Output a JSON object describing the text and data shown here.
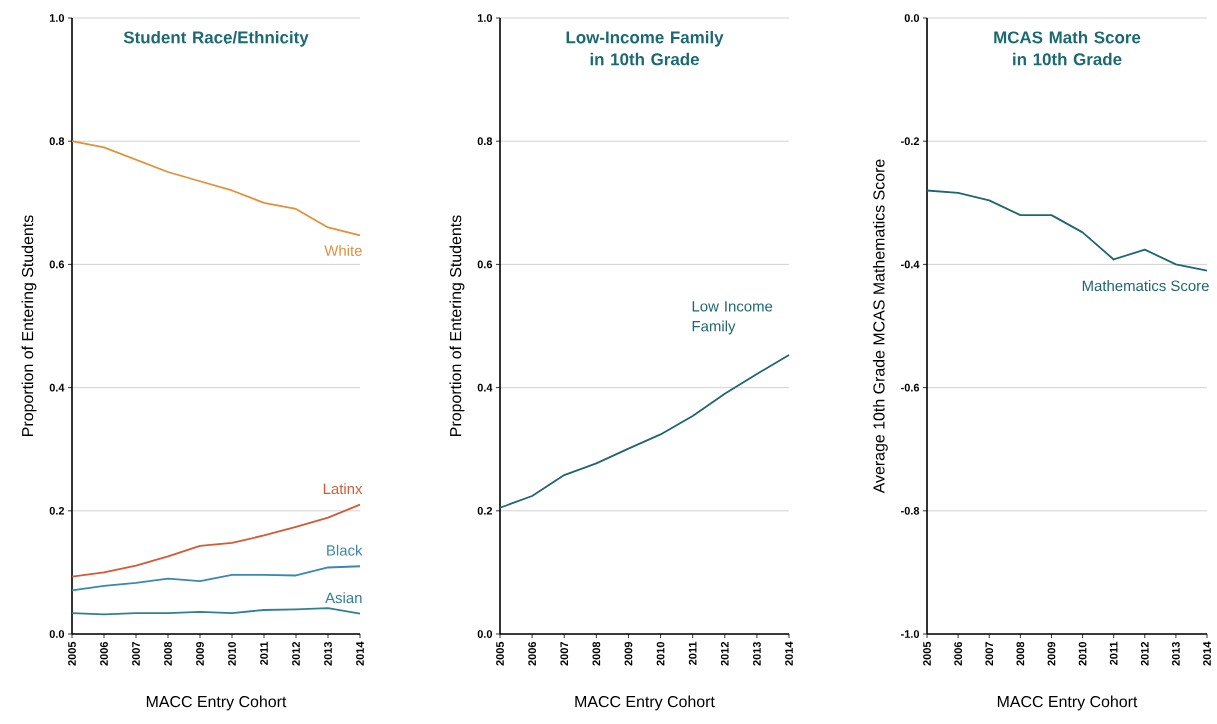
{
  "chart_data": [
    {
      "type": "line",
      "title": "Student Race/Ethnicity",
      "xlabel": "MACC Entry Cohort",
      "ylabel": "Proportion of Entering Students",
      "x": [
        2005,
        2006,
        2007,
        2008,
        2009,
        2010,
        2011,
        2012,
        2013,
        2014
      ],
      "series": [
        {
          "name": "White",
          "color": "#e0913a",
          "values": [
            0.8,
            0.79,
            0.77,
            0.75,
            0.735,
            0.72,
            0.7,
            0.69,
            0.66,
            0.647
          ]
        },
        {
          "name": "Latinx",
          "color": "#d35a35",
          "values": [
            0.093,
            0.1,
            0.111,
            0.126,
            0.143,
            0.148,
            0.16,
            0.174,
            0.189,
            0.21
          ]
        },
        {
          "name": "Black",
          "color": "#3a88b0",
          "values": [
            0.071,
            0.078,
            0.083,
            0.09,
            0.086,
            0.096,
            0.096,
            0.095,
            0.108,
            0.11
          ]
        },
        {
          "name": "Asian",
          "color": "#2f7f95",
          "values": [
            0.034,
            0.032,
            0.034,
            0.034,
            0.036,
            0.034,
            0.039,
            0.04,
            0.042,
            0.033
          ]
        }
      ],
      "xlim": [
        2005,
        2014
      ],
      "xticks": [
        2005,
        2006,
        2007,
        2008,
        2009,
        2010,
        2011,
        2012,
        2013,
        2014
      ],
      "ylim": [
        0,
        1
      ],
      "yticks": [
        {
          "value": 0,
          "label": "0.0"
        },
        0.2,
        0.4,
        0.6,
        0.8,
        {
          "value": 1,
          "label": "1.0"
        }
      ],
      "grid": "y",
      "legend": false
    },
    {
      "type": "line",
      "title": "Low-Income Family in 10th Grade",
      "xlabel": "MACC Entry Cohort",
      "ylabel": "Proportion of Entering Students",
      "x": [
        2005,
        2006,
        2007,
        2008,
        2009,
        2010,
        2011,
        2012,
        2013,
        2014
      ],
      "series": [
        {
          "name": "Low Income Family",
          "color": "#1f6670",
          "values": [
            0.205,
            0.224,
            0.258,
            0.277,
            0.301,
            0.324,
            0.354,
            0.39,
            0.422,
            0.453
          ]
        }
      ],
      "xlim": [
        2005,
        2014
      ],
      "xticks": [
        2005,
        2006,
        2007,
        2008,
        2009,
        2010,
        2011,
        2012,
        2013,
        2014
      ],
      "ylim": [
        0,
        1
      ],
      "yticks": [
        {
          "value": 0,
          "label": "0.0"
        },
        0.2,
        0.4,
        0.6,
        0.8,
        {
          "value": 1,
          "label": "1.0"
        }
      ],
      "grid": "y",
      "legend": false
    },
    {
      "type": "line",
      "title": "MCAS Math Score in 10th Grade",
      "xlabel": "MACC Entry Cohort",
      "ylabel": "Average 10th Grade MCAS Mathematics Score",
      "x": [
        2005,
        2006,
        2007,
        2008,
        2009,
        2010,
        2011,
        2012,
        2013,
        2014
      ],
      "series": [
        {
          "name": "Mathematics Score",
          "color": "#1f6670",
          "values": [
            -0.28,
            -0.284,
            -0.296,
            -0.32,
            -0.32,
            -0.348,
            -0.392,
            -0.376,
            -0.4,
            -0.41
          ]
        }
      ],
      "xlim": [
        2005,
        2014
      ],
      "xticks": [
        2005,
        2006,
        2007,
        2008,
        2009,
        2010,
        2011,
        2012,
        2013,
        2014
      ],
      "ylim": [
        -1,
        0
      ],
      "yticks": [
        {
          "value": -1,
          "label": "-1.0"
        },
        -0.8,
        -0.6,
        -0.4,
        -0.2,
        {
          "value": 0,
          "label": "0.0"
        }
      ],
      "grid": "y",
      "legend": false
    }
  ]
}
